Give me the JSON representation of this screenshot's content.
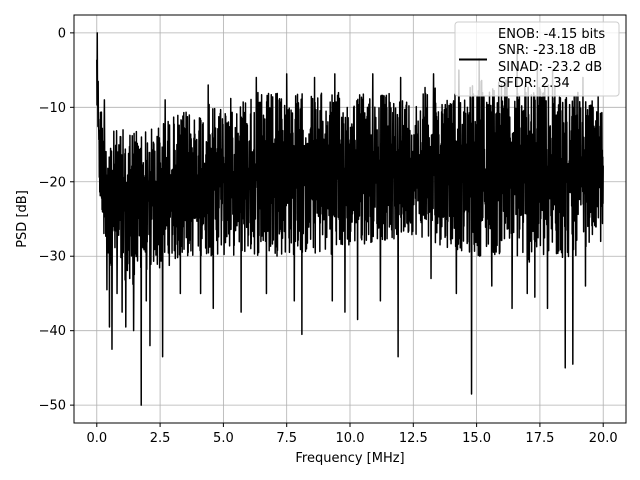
{
  "chart_data": {
    "type": "line",
    "xlabel": "Frequency [MHz]",
    "ylabel": "PSD [dB]",
    "xlim": [
      -0.9,
      20.9
    ],
    "ylim": [
      -52.4,
      2.4
    ],
    "xticks": [
      0.0,
      2.5,
      5.0,
      7.5,
      10.0,
      12.5,
      15.0,
      17.5,
      20.0
    ],
    "xtick_labels": [
      "0.0",
      "2.5",
      "5.0",
      "7.5",
      "10.0",
      "12.5",
      "15.0",
      "17.5",
      "20.0"
    ],
    "yticks": [
      0,
      -10,
      -20,
      -30,
      -40,
      -50
    ],
    "ytick_labels": [
      "0",
      "−10",
      "−20",
      "−30",
      "−40",
      "−50"
    ],
    "grid": true,
    "legend": {
      "placement": "top-right",
      "lines": [
        "ENOB: -4.15 bits",
        "SNR: -23.18 dB",
        "SINAD: -23.2 dB",
        "SFDR: 2.34"
      ]
    },
    "series": [
      {
        "color": "#000000",
        "envelope": {
          "x": [
            0.0,
            0.05,
            0.1,
            0.2,
            0.3,
            0.5,
            1.0,
            1.5,
            2.0,
            2.5,
            3.0,
            4.0,
            5.0,
            6.0,
            7.0,
            8.0,
            9.0,
            10.0,
            11.0,
            12.0,
            12.5,
            13.0,
            14.0,
            15.0,
            16.0,
            17.0,
            18.0,
            19.0,
            20.0
          ],
          "upper": [
            0,
            -5,
            -8,
            -10,
            -11,
            -13,
            -13,
            -12,
            -13,
            -12,
            -11,
            -10,
            -9,
            -8,
            -8,
            -8,
            -8,
            -8,
            -8,
            -8,
            -9,
            -7,
            -8,
            -6,
            -6,
            -7,
            -7,
            -8,
            -10
          ],
          "lower": [
            -10,
            -18,
            -22,
            -27,
            -29,
            -31,
            -33,
            -34,
            -32,
            -32,
            -31,
            -30,
            -30,
            -30,
            -30,
            -30,
            -30,
            -29,
            -28,
            -28,
            -27,
            -28,
            -29,
            -30,
            -30,
            -31,
            -31,
            -30,
            -26
          ]
        },
        "dips": [
          {
            "x": 0.4,
            "y": -34.5
          },
          {
            "x": 0.5,
            "y": -39.5
          },
          {
            "x": 0.6,
            "y": -42.5
          },
          {
            "x": 0.8,
            "y": -35
          },
          {
            "x": 1.0,
            "y": -37.5
          },
          {
            "x": 1.15,
            "y": -39.5
          },
          {
            "x": 1.3,
            "y": -33
          },
          {
            "x": 1.45,
            "y": -40
          },
          {
            "x": 1.75,
            "y": -50
          },
          {
            "x": 1.95,
            "y": -36
          },
          {
            "x": 2.1,
            "y": -42
          },
          {
            "x": 2.6,
            "y": -43.5
          },
          {
            "x": 3.3,
            "y": -35
          },
          {
            "x": 4.1,
            "y": -35
          },
          {
            "x": 4.6,
            "y": -37
          },
          {
            "x": 5.7,
            "y": -37.5
          },
          {
            "x": 6.7,
            "y": -35
          },
          {
            "x": 7.8,
            "y": -36
          },
          {
            "x": 8.1,
            "y": -40.5
          },
          {
            "x": 9.3,
            "y": -36
          },
          {
            "x": 9.8,
            "y": -37.5
          },
          {
            "x": 10.3,
            "y": -38.5
          },
          {
            "x": 11.2,
            "y": -36
          },
          {
            "x": 11.9,
            "y": -43.5
          },
          {
            "x": 13.2,
            "y": -33
          },
          {
            "x": 14.2,
            "y": -35
          },
          {
            "x": 14.8,
            "y": -48.5
          },
          {
            "x": 15.6,
            "y": -34
          },
          {
            "x": 16.4,
            "y": -37
          },
          {
            "x": 17.0,
            "y": -35
          },
          {
            "x": 17.3,
            "y": -35.5
          },
          {
            "x": 17.8,
            "y": -37
          },
          {
            "x": 18.5,
            "y": -45
          },
          {
            "x": 18.8,
            "y": -44.5
          },
          {
            "x": 19.3,
            "y": -34
          },
          {
            "x": 19.9,
            "y": -28
          }
        ],
        "peaks": [
          {
            "x": 0.02,
            "y": 0
          },
          {
            "x": 0.3,
            "y": -9
          },
          {
            "x": 2.7,
            "y": -9
          },
          {
            "x": 4.4,
            "y": -7
          },
          {
            "x": 6.3,
            "y": -6
          },
          {
            "x": 7.5,
            "y": -5.5
          },
          {
            "x": 8.6,
            "y": -6
          },
          {
            "x": 9.4,
            "y": -5.5
          },
          {
            "x": 10.9,
            "y": -5.5
          },
          {
            "x": 12.0,
            "y": -6
          },
          {
            "x": 13.3,
            "y": -5.5
          },
          {
            "x": 14.3,
            "y": -5
          },
          {
            "x": 15.1,
            "y": -3.5
          },
          {
            "x": 16.6,
            "y": -2.5
          },
          {
            "x": 17.4,
            "y": -4
          },
          {
            "x": 18.0,
            "y": -5
          },
          {
            "x": 19.2,
            "y": -6
          },
          {
            "x": 19.8,
            "y": -8.5
          }
        ]
      }
    ]
  }
}
